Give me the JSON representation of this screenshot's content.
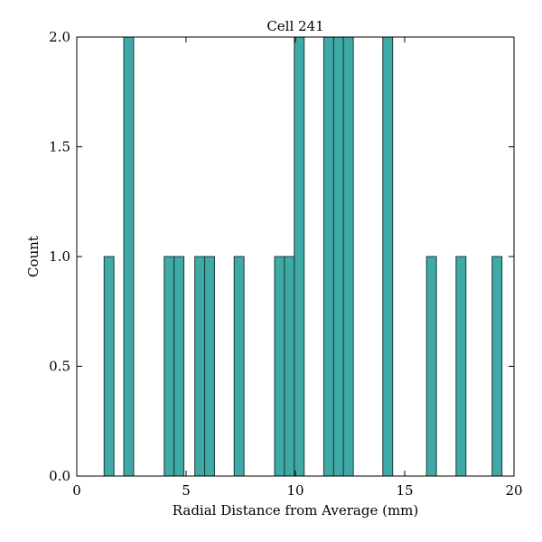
{
  "chart_data": {
    "type": "bar",
    "title": "Cell 241",
    "xlabel": "Radial Distance from Average (mm)",
    "ylabel": "Count",
    "xlim": [
      0,
      20
    ],
    "ylim": [
      0,
      2
    ],
    "xticks": [
      0,
      5,
      10,
      15,
      20
    ],
    "xtick_labels": [
      "0",
      "5",
      "10",
      "15",
      "20"
    ],
    "yticks": [
      0,
      0.5,
      1,
      1.5,
      2
    ],
    "ytick_labels": [
      "0.0",
      "0.5",
      "1.0",
      "1.5",
      "2.0"
    ],
    "grid": false,
    "bar_color": "#3fa9a5",
    "bar_edge_color": "#1a3a3a",
    "bars": [
      {
        "x0": 1.25,
        "x1": 1.7,
        "count": 1
      },
      {
        "x0": 2.15,
        "x1": 2.6,
        "count": 2
      },
      {
        "x0": 4.0,
        "x1": 4.45,
        "count": 1
      },
      {
        "x0": 4.45,
        "x1": 4.9,
        "count": 1
      },
      {
        "x0": 5.4,
        "x1": 5.85,
        "count": 1
      },
      {
        "x0": 5.85,
        "x1": 6.3,
        "count": 1
      },
      {
        "x0": 7.2,
        "x1": 7.65,
        "count": 1
      },
      {
        "x0": 9.05,
        "x1": 9.5,
        "count": 1
      },
      {
        "x0": 9.5,
        "x1": 9.95,
        "count": 1
      },
      {
        "x0": 9.95,
        "x1": 10.4,
        "count": 2
      },
      {
        "x0": 11.3,
        "x1": 11.75,
        "count": 2
      },
      {
        "x0": 11.75,
        "x1": 12.2,
        "count": 2
      },
      {
        "x0": 12.2,
        "x1": 12.65,
        "count": 2
      },
      {
        "x0": 14.0,
        "x1": 14.45,
        "count": 2
      },
      {
        "x0": 16.0,
        "x1": 16.45,
        "count": 1
      },
      {
        "x0": 17.35,
        "x1": 17.8,
        "count": 1
      },
      {
        "x0": 19.0,
        "x1": 19.45,
        "count": 1
      }
    ]
  }
}
